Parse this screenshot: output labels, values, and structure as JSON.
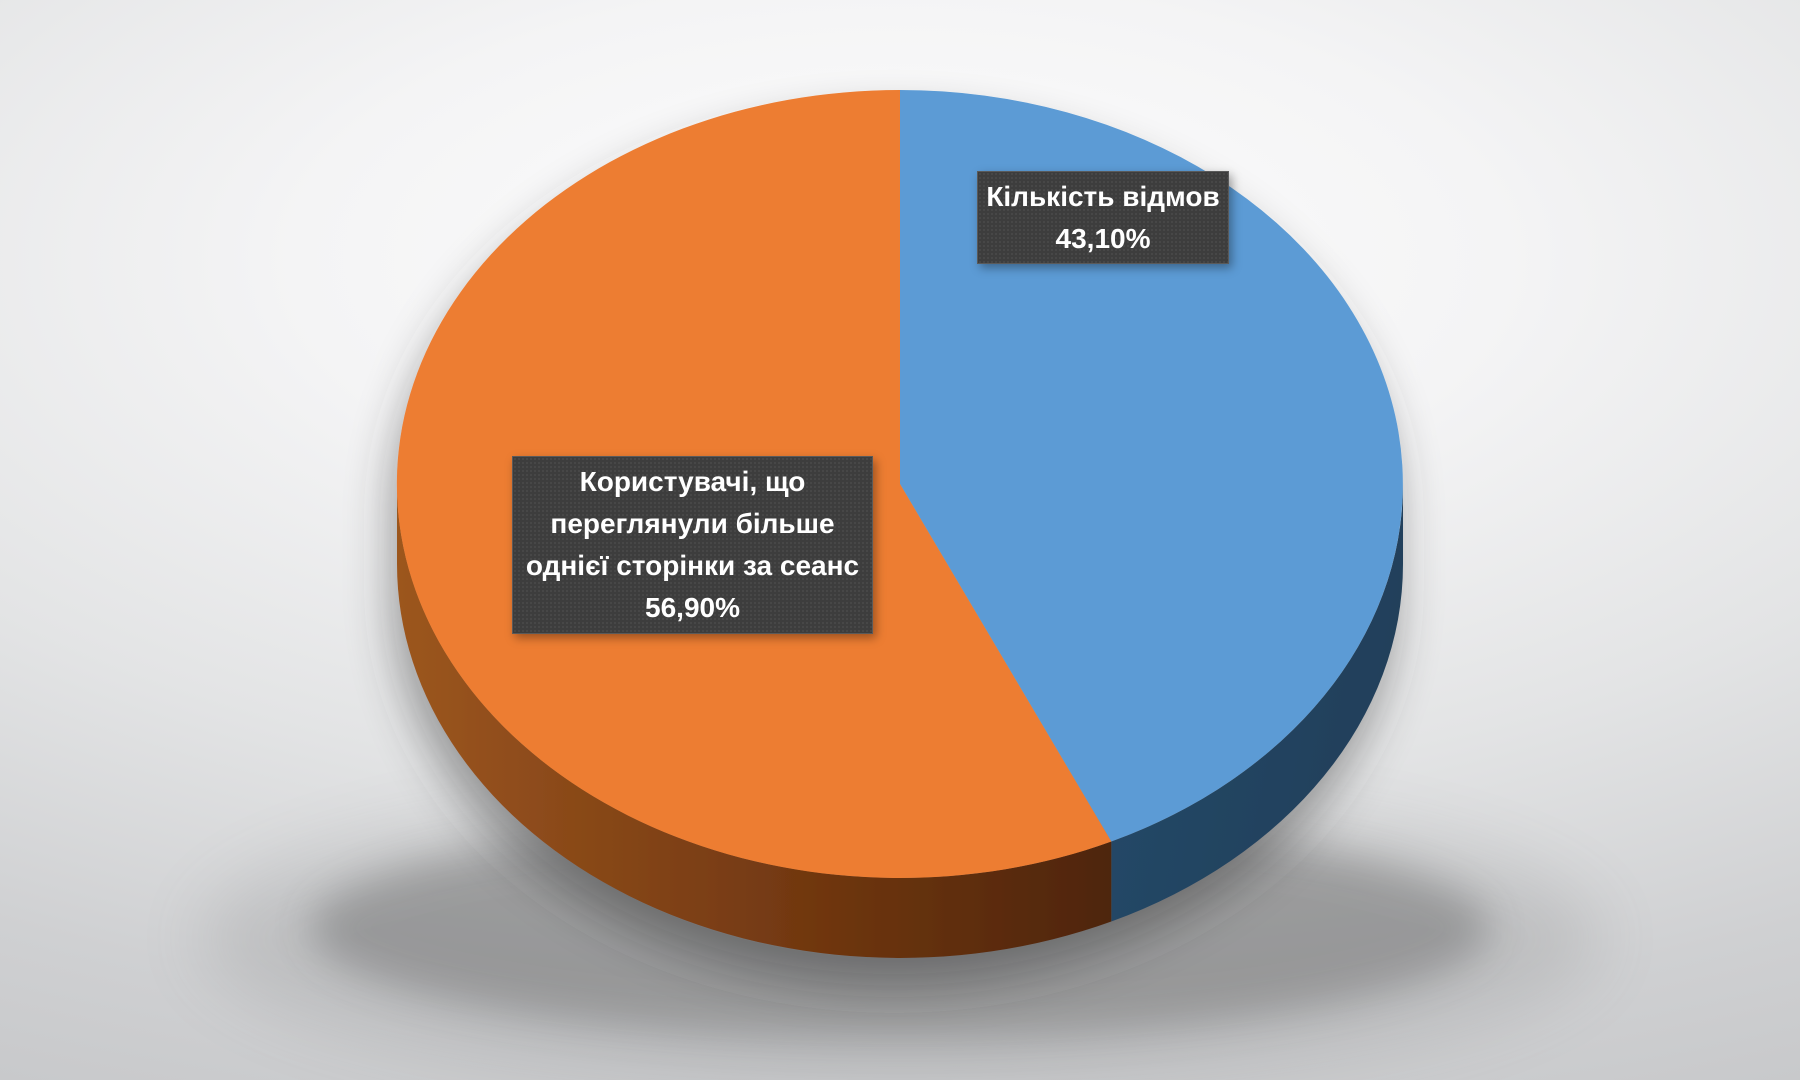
{
  "chart_data": {
    "type": "pie",
    "effect_3d": true,
    "start_angle_deg": 0,
    "direction": "clockwise",
    "title": "",
    "legend_position": "none",
    "data_labels": "category name + percent in dark callout boxes",
    "slices": [
      {
        "label": "Кількість відмов",
        "value": 43.1,
        "value_display": "43,10%",
        "top_color": "#5b9bd5",
        "side_color": "#20405a"
      },
      {
        "label": "Користувачі, що переглянули більше однієї сторінки за сеанс",
        "value": 56.9,
        "value_display": "56,90%",
        "top_color": "#ed7d31",
        "side_color": "#7a3c10"
      }
    ]
  },
  "labels": {
    "bounce": {
      "line1": "Кількість відмов",
      "line2": "43,10%"
    },
    "engaged": {
      "line1": "Користувачі, що",
      "line2": "переглянули більше",
      "line3": "однієї сторінки за сеанс",
      "line4": "56,90%"
    }
  },
  "colors": {
    "blue_top": "#5b9bd5",
    "blue_side": "#20405a",
    "orange_top": "#ed7d31",
    "orange_side_light": "#9c561f",
    "orange_side_mid": "#6f3610",
    "orange_side_dark": "#4e2508",
    "label_box_bg": "#3d3d3d",
    "label_text": "#ffffff",
    "background": "#e3e4e5"
  }
}
